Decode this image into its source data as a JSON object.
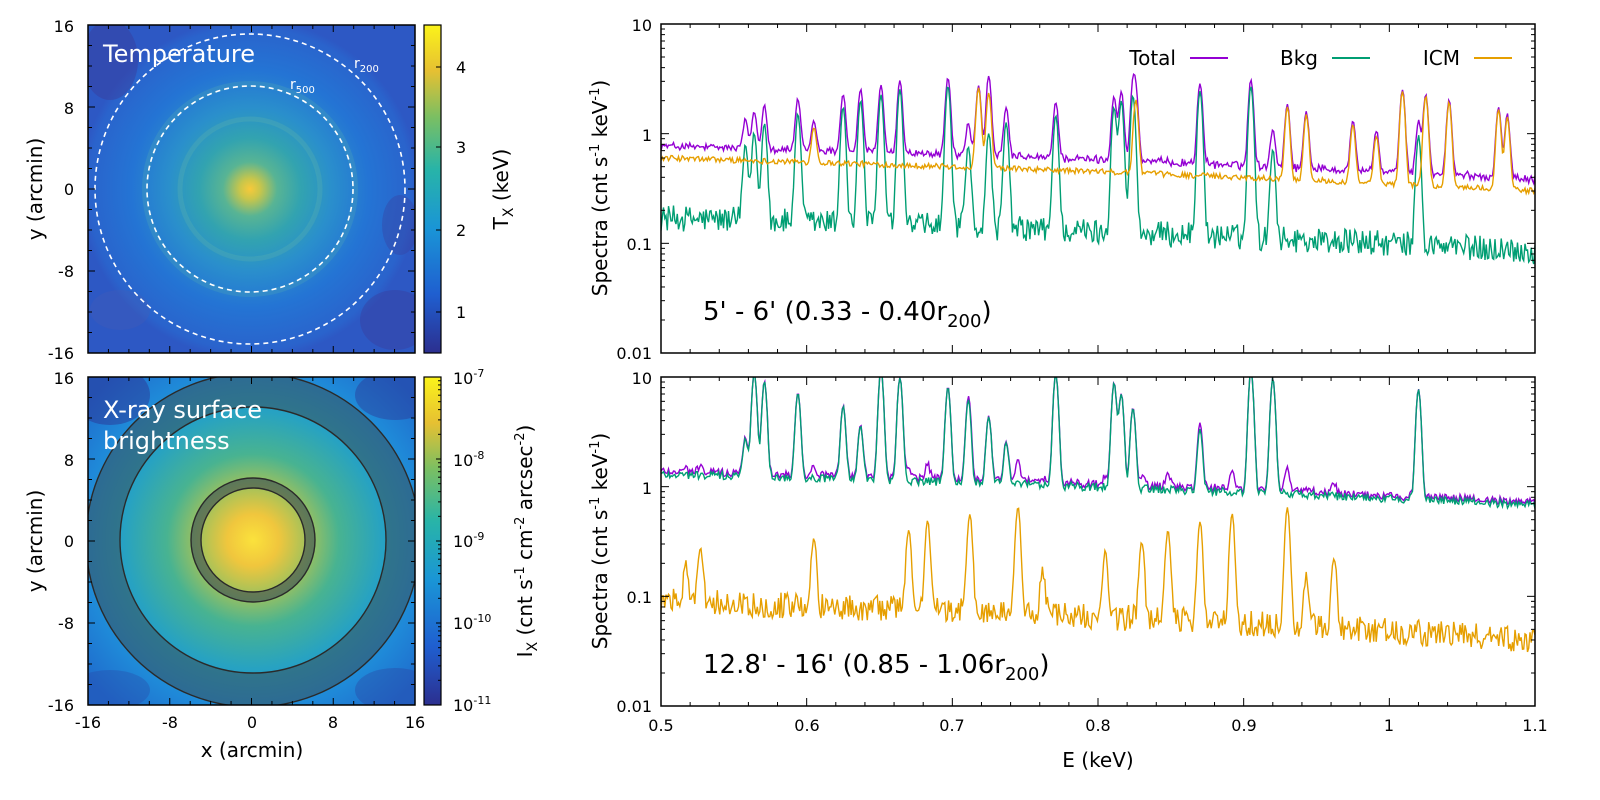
{
  "maps": {
    "temperature": {
      "title": "Temperature",
      "r200_label": "r",
      "r200_sub": "200",
      "r500_label": "r",
      "r500_sub": "500",
      "ylabel": "y (arcmin)",
      "cbar_label": "T",
      "cbar_sub": "X",
      "cbar_unit": " (keV)",
      "yticks": [
        "16",
        "8",
        "0",
        "-8",
        "-16"
      ],
      "cbar_ticks": [
        "4",
        "3",
        "2",
        "1"
      ]
    },
    "brightness": {
      "title_line1": "X-ray surface",
      "title_line2": "brightness",
      "ylabel": "y (arcmin)",
      "xlabel": "x (arcmin)",
      "cbar_label": "I",
      "cbar_sub": "X",
      "cbar_unit_a": " (cnt s",
      "cbar_unit_b": "-1",
      "cbar_unit_c": " cm",
      "cbar_unit_d": "-2",
      "cbar_unit_e": " arcsec",
      "cbar_unit_f": "-2",
      "cbar_unit_g": ")",
      "yticks": [
        "16",
        "8",
        "0",
        "-8",
        "-16"
      ],
      "xticks": [
        "-16",
        "-8",
        "0",
        "8",
        "16"
      ],
      "cbar_ticks": [
        {
          "base": "10",
          "exp": "-7"
        },
        {
          "base": "10",
          "exp": "-8"
        },
        {
          "base": "10",
          "exp": "-9"
        },
        {
          "base": "10",
          "exp": "-10"
        },
        {
          "base": "10",
          "exp": "-11"
        }
      ]
    }
  },
  "chart_data": [
    {
      "type": "line",
      "panel": "top",
      "yscale": "log",
      "ylim": [
        0.01,
        10
      ],
      "xlim": [
        0.5,
        1.1
      ],
      "ylabel_a": "Spectra (cnt s",
      "ylabel_b": "-1",
      "ylabel_c": " keV",
      "ylabel_d": "-1",
      "ylabel_e": ")",
      "yticks": [
        "10",
        "1",
        "0.1",
        "0.01"
      ],
      "annotation": "5' - 6'  (0.33 - 0.40r",
      "annotation_sub": "200",
      "annotation_end": ")",
      "series": [
        {
          "name": "Total",
          "color": "#9400d3",
          "baseline": [
            0.78,
            0.38
          ]
        },
        {
          "name": "Bkg",
          "color": "#009e73",
          "baseline": [
            0.17,
            0.085
          ]
        },
        {
          "name": "ICM",
          "color": "#e69f00",
          "baseline": [
            0.6,
            0.3
          ]
        }
      ],
      "lines": {
        "bkg": [
          0.558,
          0.564,
          0.571,
          0.594,
          0.625,
          0.637,
          0.651,
          0.664,
          0.697,
          0.711,
          0.725,
          0.737,
          0.771,
          0.811,
          0.816,
          0.824,
          0.87,
          0.905,
          0.92,
          1.02
        ],
        "icm": [
          0.605,
          0.718,
          0.725,
          0.826,
          0.93,
          0.943,
          0.975,
          0.991,
          1.009,
          1.025,
          1.041,
          1.075,
          1.081
        ]
      }
    },
    {
      "type": "line",
      "panel": "bottom",
      "yscale": "log",
      "ylim": [
        0.01,
        10
      ],
      "xlim": [
        0.5,
        1.1
      ],
      "xlabel": "E (keV)",
      "xticks": [
        "0.5",
        "0.6",
        "0.7",
        "0.8",
        "0.9",
        "1",
        "1.1"
      ],
      "ylabel_a": "Spectra (cnt s",
      "ylabel_b": "-1",
      "ylabel_c": " keV",
      "ylabel_d": "-1",
      "ylabel_e": ")",
      "yticks": [
        "10",
        "1",
        "0.1",
        "0.01"
      ],
      "annotation": "12.8' - 16'  (0.85 - 1.06r",
      "annotation_sub": "200",
      "annotation_end": ")",
      "series": [
        {
          "name": "Total",
          "color": "#9400d3",
          "baseline": [
            1.45,
            0.72
          ]
        },
        {
          "name": "Bkg",
          "color": "#009e73",
          "baseline": [
            1.3,
            0.68
          ]
        },
        {
          "name": "ICM",
          "color": "#e69f00",
          "baseline": [
            0.09,
            0.04
          ]
        }
      ],
      "lines": {
        "bkg": [
          0.558,
          0.564,
          0.571,
          0.594,
          0.625,
          0.637,
          0.651,
          0.664,
          0.697,
          0.711,
          0.725,
          0.737,
          0.771,
          0.811,
          0.816,
          0.824,
          0.87,
          0.905,
          0.92,
          1.02
        ],
        "icm": [
          0.517,
          0.527,
          0.605,
          0.67,
          0.683,
          0.712,
          0.745,
          0.762,
          0.805,
          0.83,
          0.848,
          0.87,
          0.892,
          0.93,
          0.943,
          0.962
        ]
      }
    }
  ]
}
